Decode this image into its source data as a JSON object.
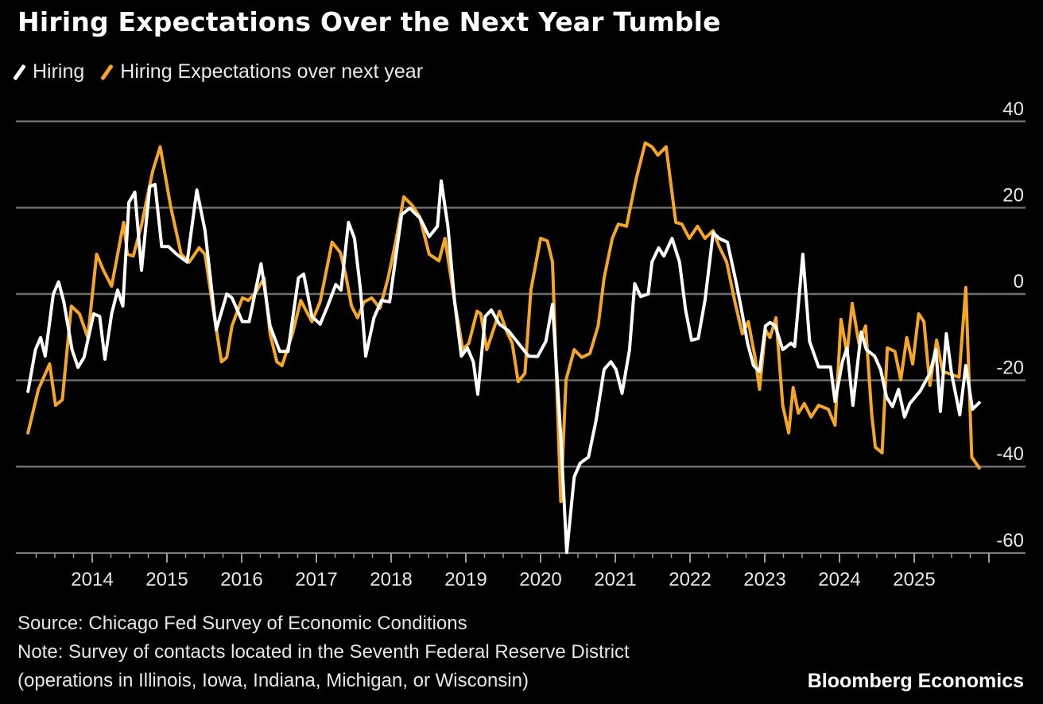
{
  "chart_data": {
    "type": "line",
    "title": "Hiring Expectations Over the Next Year Tumble",
    "xlabel": "",
    "ylabel": "",
    "ylim": [
      -60,
      40
    ],
    "xlim": [
      2013.0,
      2026.0
    ],
    "yticks": [
      "40",
      "20",
      "0",
      "-20",
      "-40",
      "-60"
    ],
    "ytick_values": [
      40,
      20,
      0,
      -20,
      -40,
      -60
    ],
    "xticks": [
      "2014",
      "2015",
      "2016",
      "2017",
      "2018",
      "2019",
      "2020",
      "2021",
      "2022",
      "2023",
      "2024",
      "2025"
    ],
    "xtick_values": [
      2014,
      2015,
      2016,
      2017,
      2018,
      2019,
      2020,
      2021,
      2022,
      2023,
      2024,
      2025
    ],
    "grid": true,
    "legend_position": "top-left",
    "series": [
      {
        "name": "Hiring",
        "color": "#ffffff",
        "points": [
          [
            2013.14,
            -22.6
          ],
          [
            2013.24,
            -12.9
          ],
          [
            2013.31,
            -10.1
          ],
          [
            2013.37,
            -14.4
          ],
          [
            2013.48,
            0
          ],
          [
            2013.55,
            2.8
          ],
          [
            2013.62,
            -1.8
          ],
          [
            2013.73,
            -12.9
          ],
          [
            2013.81,
            -17.0
          ],
          [
            2013.89,
            -14.7
          ],
          [
            2014.02,
            -4.6
          ],
          [
            2014.1,
            -5.2
          ],
          [
            2014.17,
            -15.1
          ],
          [
            2014.26,
            -4.6
          ],
          [
            2014.34,
            0.9
          ],
          [
            2014.41,
            -2.8
          ],
          [
            2014.49,
            21.2
          ],
          [
            2014.57,
            23.6
          ],
          [
            2014.66,
            5.5
          ],
          [
            2014.77,
            24.9
          ],
          [
            2014.84,
            25.4
          ],
          [
            2014.93,
            11.0
          ],
          [
            2015.02,
            11.0
          ],
          [
            2015.13,
            9.2
          ],
          [
            2015.27,
            7.4
          ],
          [
            2015.4,
            24.1
          ],
          [
            2015.51,
            14.7
          ],
          [
            2015.66,
            -8.3
          ],
          [
            2015.8,
            0
          ],
          [
            2015.87,
            -0.9
          ],
          [
            2016.01,
            -6.4
          ],
          [
            2016.1,
            -6.4
          ],
          [
            2016.26,
            7.0
          ],
          [
            2016.38,
            -7.4
          ],
          [
            2016.51,
            -13.3
          ],
          [
            2016.62,
            -13.3
          ],
          [
            2016.76,
            3.7
          ],
          [
            2016.83,
            4.6
          ],
          [
            2016.94,
            -5.2
          ],
          [
            2017.05,
            -7.0
          ],
          [
            2017.15,
            -2.8
          ],
          [
            2017.26,
            2.2
          ],
          [
            2017.33,
            0.9
          ],
          [
            2017.43,
            16.6
          ],
          [
            2017.51,
            12.9
          ],
          [
            2017.59,
            0.9
          ],
          [
            2017.66,
            -14.4
          ],
          [
            2017.77,
            -5.5
          ],
          [
            2017.87,
            -1.5
          ],
          [
            2017.98,
            -1.8
          ],
          [
            2018.14,
            18.4
          ],
          [
            2018.25,
            19.9
          ],
          [
            2018.39,
            17.5
          ],
          [
            2018.51,
            13.3
          ],
          [
            2018.62,
            15.7
          ],
          [
            2018.67,
            26.2
          ],
          [
            2018.76,
            15.7
          ],
          [
            2018.85,
            -1.8
          ],
          [
            2018.94,
            -14.4
          ],
          [
            2019.02,
            -12.5
          ],
          [
            2019.1,
            -15.7
          ],
          [
            2019.16,
            -23.2
          ],
          [
            2019.26,
            -5.2
          ],
          [
            2019.34,
            -3.7
          ],
          [
            2019.45,
            -7.0
          ],
          [
            2019.57,
            -8.5
          ],
          [
            2019.73,
            -12.0
          ],
          [
            2019.84,
            -14.4
          ],
          [
            2019.96,
            -14.5
          ],
          [
            2020.07,
            -11.0
          ],
          [
            2020.16,
            -2.4
          ],
          [
            2020.27,
            -33.1
          ],
          [
            2020.35,
            -59.9
          ],
          [
            2020.45,
            -42.4
          ],
          [
            2020.53,
            -39.2
          ],
          [
            2020.64,
            -37.8
          ],
          [
            2020.74,
            -29.5
          ],
          [
            2020.85,
            -17.5
          ],
          [
            2020.94,
            -15.7
          ],
          [
            2021.01,
            -17.5
          ],
          [
            2021.09,
            -23.0
          ],
          [
            2021.19,
            -12.9
          ],
          [
            2021.26,
            2.4
          ],
          [
            2021.34,
            -0.6
          ],
          [
            2021.44,
            0
          ],
          [
            2021.49,
            7.4
          ],
          [
            2021.58,
            10.7
          ],
          [
            2021.65,
            8.8
          ],
          [
            2021.76,
            12.9
          ],
          [
            2021.86,
            7.4
          ],
          [
            2021.94,
            -3.7
          ],
          [
            2022.02,
            -10.7
          ],
          [
            2022.11,
            -10.3
          ],
          [
            2022.2,
            -1.5
          ],
          [
            2022.31,
            14.2
          ],
          [
            2022.39,
            12.9
          ],
          [
            2022.5,
            12.0
          ],
          [
            2022.61,
            3.3
          ],
          [
            2022.68,
            -2.8
          ],
          [
            2022.77,
            -11.4
          ],
          [
            2022.85,
            -16.6
          ],
          [
            2022.93,
            -18.0
          ],
          [
            2023.01,
            -7.4
          ],
          [
            2023.07,
            -6.6
          ],
          [
            2023.14,
            -7.4
          ],
          [
            2023.24,
            -12.9
          ],
          [
            2023.35,
            -11.4
          ],
          [
            2023.4,
            -12.2
          ],
          [
            2023.51,
            9.2
          ],
          [
            2023.6,
            -11.0
          ],
          [
            2023.72,
            -16.9
          ],
          [
            2023.88,
            -16.9
          ],
          [
            2023.94,
            -24.9
          ],
          [
            2024.04,
            -15.6
          ],
          [
            2024.1,
            -12.5
          ],
          [
            2024.18,
            -25.8
          ],
          [
            2024.29,
            -8.8
          ],
          [
            2024.36,
            -12.9
          ],
          [
            2024.47,
            -14.4
          ],
          [
            2024.55,
            -17.5
          ],
          [
            2024.63,
            -23.9
          ],
          [
            2024.71,
            -26.1
          ],
          [
            2024.79,
            -22.1
          ],
          [
            2024.87,
            -28.5
          ],
          [
            2024.94,
            -25.4
          ],
          [
            2025.08,
            -22.5
          ],
          [
            2025.21,
            -18.4
          ],
          [
            2025.29,
            -12.9
          ],
          [
            2025.35,
            -27.2
          ],
          [
            2025.43,
            -9.2
          ],
          [
            2025.5,
            -18.4
          ],
          [
            2025.61,
            -28.0
          ],
          [
            2025.69,
            -16.6
          ],
          [
            2025.78,
            -26.7
          ],
          [
            2025.87,
            -25.2
          ]
        ]
      },
      {
        "name": "Hiring Expectations over next year",
        "color": "#f5a623",
        "points": [
          [
            2013.14,
            -32.2
          ],
          [
            2013.28,
            -22.1
          ],
          [
            2013.43,
            -16.2
          ],
          [
            2013.51,
            -25.8
          ],
          [
            2013.6,
            -24.5
          ],
          [
            2013.72,
            -2.8
          ],
          [
            2013.83,
            -4.6
          ],
          [
            2013.94,
            -10.1
          ],
          [
            2014.06,
            9.2
          ],
          [
            2014.15,
            5.5
          ],
          [
            2014.26,
            1.8
          ],
          [
            2014.36,
            11.0
          ],
          [
            2014.42,
            16.6
          ],
          [
            2014.47,
            9.2
          ],
          [
            2014.55,
            8.8
          ],
          [
            2014.66,
            16.0
          ],
          [
            2014.81,
            28.5
          ],
          [
            2014.91,
            34.1
          ],
          [
            2015.05,
            20.3
          ],
          [
            2015.19,
            9.2
          ],
          [
            2015.3,
            7.4
          ],
          [
            2015.43,
            10.7
          ],
          [
            2015.51,
            9.2
          ],
          [
            2015.62,
            -3.7
          ],
          [
            2015.73,
            -15.7
          ],
          [
            2015.8,
            -14.7
          ],
          [
            2015.87,
            -7.4
          ],
          [
            2016.01,
            -0.9
          ],
          [
            2016.09,
            -1.5
          ],
          [
            2016.19,
            0.4
          ],
          [
            2016.3,
            3.7
          ],
          [
            2016.38,
            -9.2
          ],
          [
            2016.47,
            -15.7
          ],
          [
            2016.54,
            -16.6
          ],
          [
            2016.68,
            -9.2
          ],
          [
            2016.79,
            -1.5
          ],
          [
            2016.94,
            -6.4
          ],
          [
            2017.05,
            -1.8
          ],
          [
            2017.21,
            12.0
          ],
          [
            2017.32,
            9.6
          ],
          [
            2017.39,
            4.6
          ],
          [
            2017.47,
            -2.8
          ],
          [
            2017.55,
            -5.5
          ],
          [
            2017.64,
            -1.8
          ],
          [
            2017.74,
            -0.9
          ],
          [
            2017.85,
            -3.3
          ],
          [
            2017.96,
            3.7
          ],
          [
            2018.06,
            12.0
          ],
          [
            2018.17,
            22.5
          ],
          [
            2018.28,
            20.6
          ],
          [
            2018.38,
            18.0
          ],
          [
            2018.51,
            9.2
          ],
          [
            2018.64,
            7.7
          ],
          [
            2018.72,
            12.9
          ],
          [
            2018.85,
            -1.8
          ],
          [
            2018.96,
            -12.9
          ],
          [
            2019.04,
            -11.4
          ],
          [
            2019.15,
            -4.0
          ],
          [
            2019.2,
            -4.6
          ],
          [
            2019.28,
            -12.9
          ],
          [
            2019.36,
            -8.8
          ],
          [
            2019.45,
            -4.0
          ],
          [
            2019.55,
            -8.8
          ],
          [
            2019.62,
            -11.4
          ],
          [
            2019.7,
            -20.3
          ],
          [
            2019.79,
            -18.4
          ],
          [
            2019.87,
            0.9
          ],
          [
            2020.0,
            12.9
          ],
          [
            2020.09,
            12.3
          ],
          [
            2020.16,
            7.4
          ],
          [
            2020.27,
            -48.1
          ],
          [
            2020.34,
            -19.9
          ],
          [
            2020.45,
            -12.9
          ],
          [
            2020.55,
            -14.7
          ],
          [
            2020.66,
            -13.8
          ],
          [
            2020.77,
            -7.4
          ],
          [
            2020.85,
            3.7
          ],
          [
            2020.96,
            12.9
          ],
          [
            2021.04,
            16.2
          ],
          [
            2021.15,
            15.7
          ],
          [
            2021.28,
            26.7
          ],
          [
            2021.4,
            35.0
          ],
          [
            2021.49,
            34.1
          ],
          [
            2021.57,
            32.2
          ],
          [
            2021.68,
            34.1
          ],
          [
            2021.81,
            16.6
          ],
          [
            2021.89,
            16.2
          ],
          [
            2021.99,
            12.9
          ],
          [
            2022.1,
            15.7
          ],
          [
            2022.2,
            12.9
          ],
          [
            2022.31,
            14.7
          ],
          [
            2022.39,
            11.0
          ],
          [
            2022.49,
            7.4
          ],
          [
            2022.6,
            -1.8
          ],
          [
            2022.7,
            -9.2
          ],
          [
            2022.78,
            -6.4
          ],
          [
            2022.87,
            -14.7
          ],
          [
            2022.93,
            -22.1
          ],
          [
            2023.01,
            -8.3
          ],
          [
            2023.07,
            -10.1
          ],
          [
            2023.15,
            -5.5
          ],
          [
            2023.24,
            -25.8
          ],
          [
            2023.32,
            -32.2
          ],
          [
            2023.38,
            -21.7
          ],
          [
            2023.45,
            -27.6
          ],
          [
            2023.53,
            -25.4
          ],
          [
            2023.62,
            -28.5
          ],
          [
            2023.72,
            -25.8
          ],
          [
            2023.85,
            -26.7
          ],
          [
            2023.94,
            -30.4
          ],
          [
            2024.02,
            -5.9
          ],
          [
            2024.1,
            -13.8
          ],
          [
            2024.17,
            -2.2
          ],
          [
            2024.26,
            -11.4
          ],
          [
            2024.35,
            -7.4
          ],
          [
            2024.43,
            -27.6
          ],
          [
            2024.48,
            -35.5
          ],
          [
            2024.57,
            -36.8
          ],
          [
            2024.64,
            -12.5
          ],
          [
            2024.74,
            -13.3
          ],
          [
            2024.82,
            -19.9
          ],
          [
            2024.9,
            -10.1
          ],
          [
            2024.98,
            -16.2
          ],
          [
            2025.06,
            -4.6
          ],
          [
            2025.13,
            -6.4
          ],
          [
            2025.21,
            -21.2
          ],
          [
            2025.3,
            -10.7
          ],
          [
            2025.38,
            -18.0
          ],
          [
            2025.46,
            -18.4
          ],
          [
            2025.6,
            -19.3
          ],
          [
            2025.69,
            1.5
          ],
          [
            2025.77,
            -37.8
          ],
          [
            2025.87,
            -40.3
          ]
        ]
      }
    ]
  },
  "title": "Hiring Expectations Over the Next Year Tumble",
  "legend": [
    {
      "label": "Hiring",
      "color": "#ffffff"
    },
    {
      "label": "Hiring Expectations over next year",
      "color": "#f5a623"
    }
  ],
  "footer": {
    "source": "Source: Chicago Fed Survey of Economic Conditions",
    "note": "Note: Survey of contacts located in the Seventh Federal Reserve District",
    "note2": "(operations in Illinois, Iowa, Indiana, Michigan, or Wisconsin)",
    "brand": "Bloomberg Economics"
  }
}
